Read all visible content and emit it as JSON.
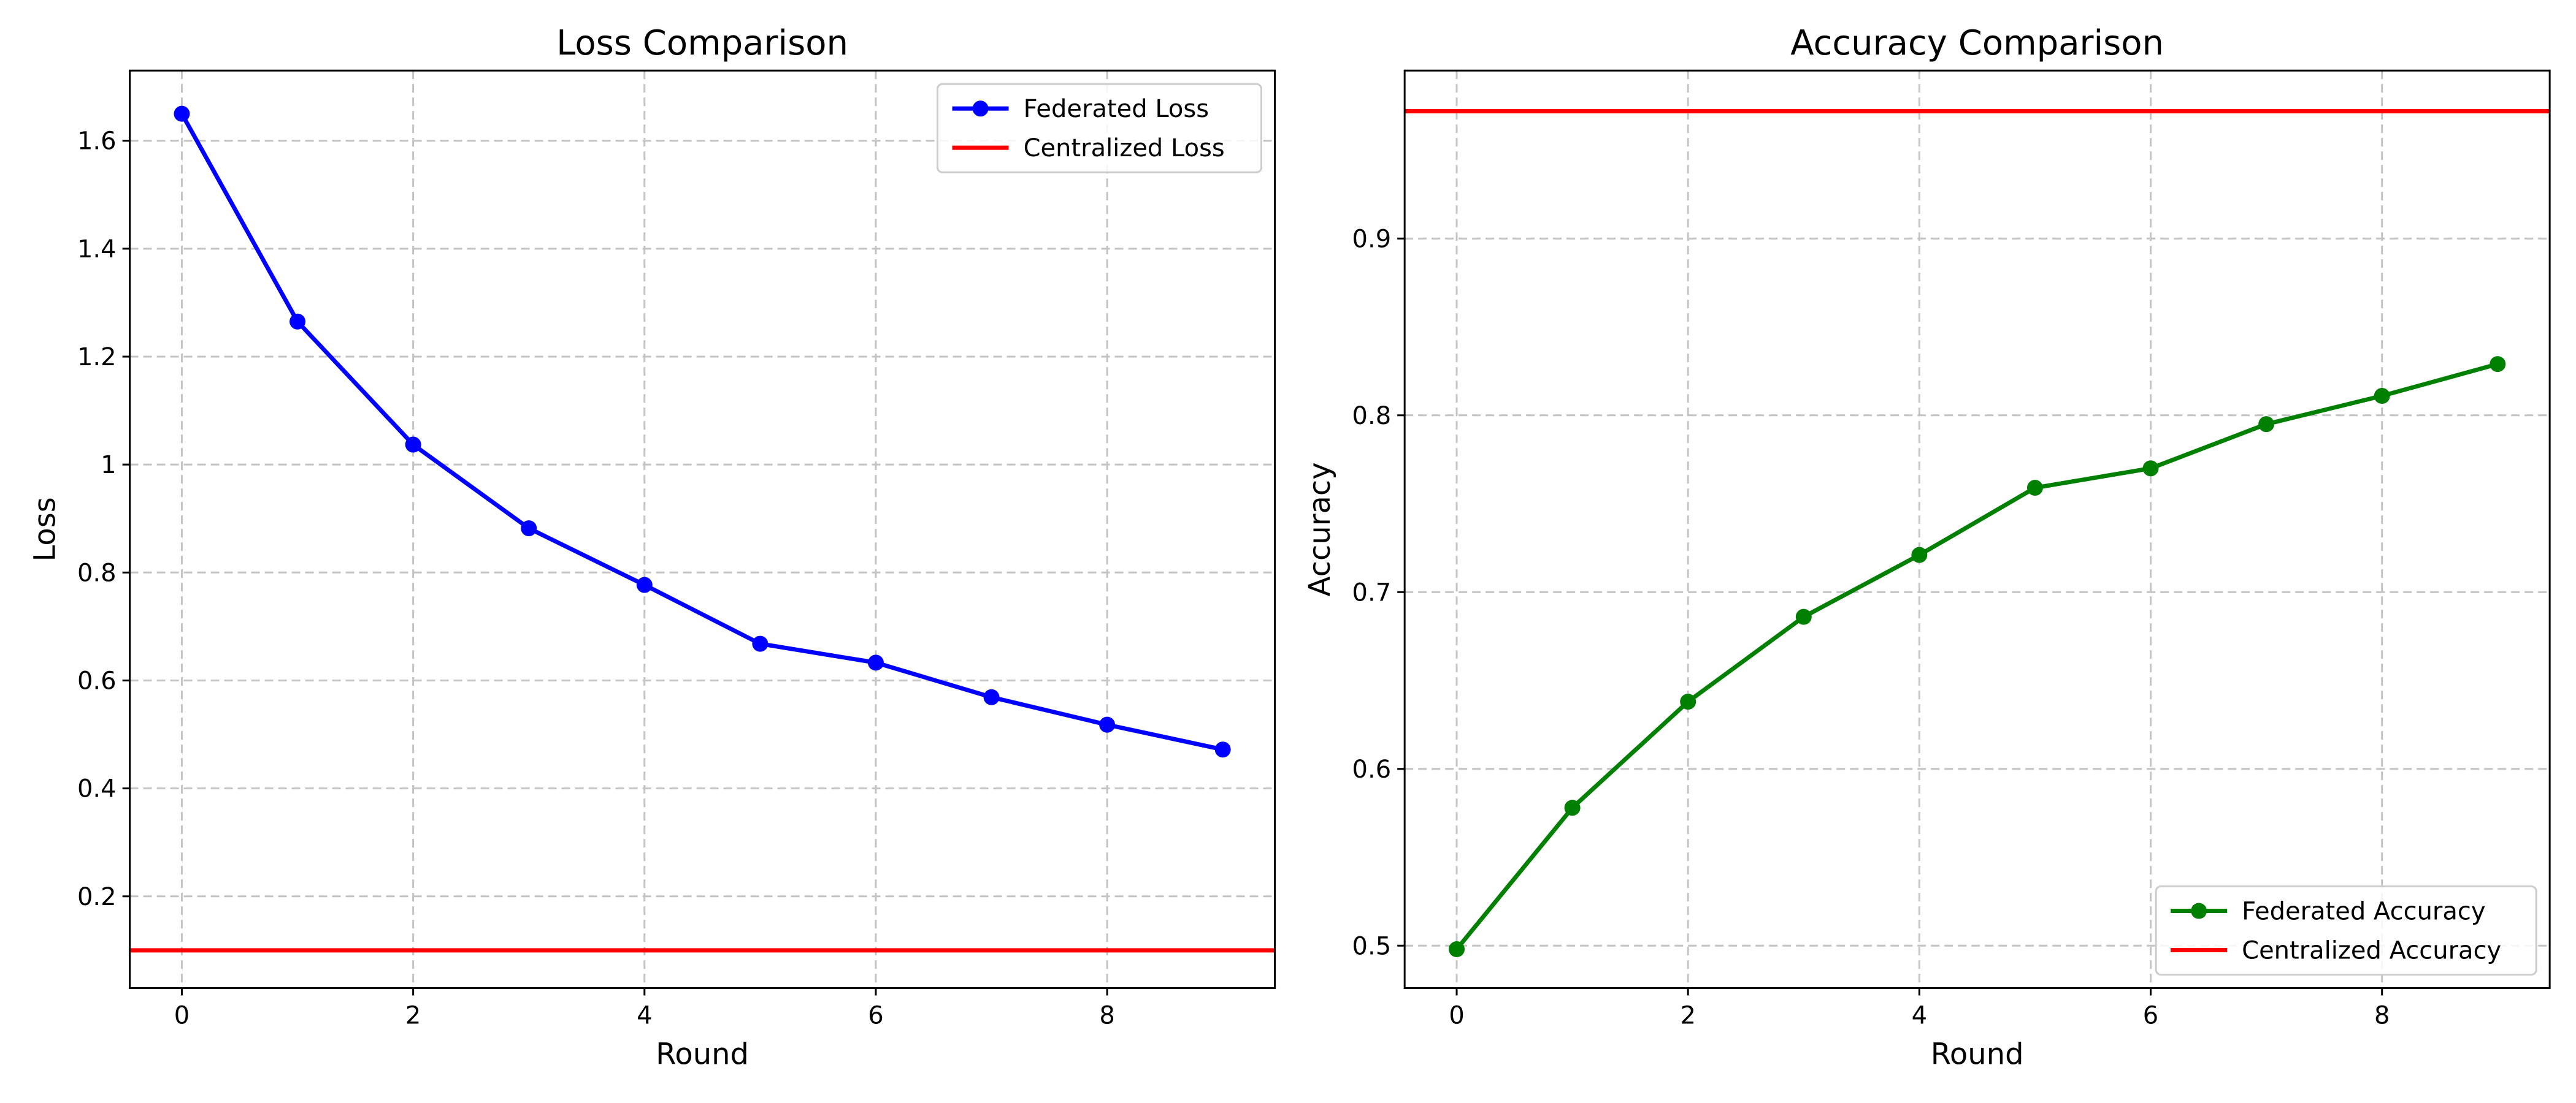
{
  "chart_data": [
    {
      "type": "line",
      "title": "Loss Comparison",
      "xlabel": "Round",
      "ylabel": "Loss",
      "xlim": [
        -0.45,
        9.45
      ],
      "ylim": [
        0.03,
        1.73
      ],
      "xticks": [
        0,
        2,
        4,
        6,
        8
      ],
      "yticks": [
        0.2,
        0.4,
        0.6,
        0.8,
        1.0,
        1.2,
        1.4,
        1.6
      ],
      "grid": true,
      "legend_position": "top-right",
      "x": [
        0,
        1,
        2,
        3,
        4,
        5,
        6,
        7,
        8,
        9
      ],
      "series": [
        {
          "name": "Federated Loss",
          "kind": "line-markers",
          "color": "#0000ff",
          "values": [
            1.65,
            1.265,
            1.037,
            0.882,
            0.777,
            0.668,
            0.633,
            0.569,
            0.518,
            0.472
          ]
        },
        {
          "name": "Centralized Loss",
          "kind": "hline",
          "color": "#ff0000",
          "value": 0.1
        }
      ]
    },
    {
      "type": "line",
      "title": "Accuracy Comparison",
      "xlabel": "Round",
      "ylabel": "Accuracy",
      "xlim": [
        -0.45,
        9.45
      ],
      "ylim": [
        0.476,
        0.995
      ],
      "xticks": [
        0,
        2,
        4,
        6,
        8
      ],
      "yticks": [
        0.5,
        0.6,
        0.7,
        0.8,
        0.9
      ],
      "grid": true,
      "legend_position": "bottom-right",
      "x": [
        0,
        1,
        2,
        3,
        4,
        5,
        6,
        7,
        8,
        9
      ],
      "series": [
        {
          "name": "Federated Accuracy",
          "kind": "line-markers",
          "color": "#008000",
          "values": [
            0.498,
            0.578,
            0.638,
            0.686,
            0.721,
            0.759,
            0.77,
            0.795,
            0.811,
            0.829
          ]
        },
        {
          "name": "Centralized Accuracy",
          "kind": "hline",
          "color": "#ff0000",
          "value": 0.972
        }
      ]
    }
  ]
}
